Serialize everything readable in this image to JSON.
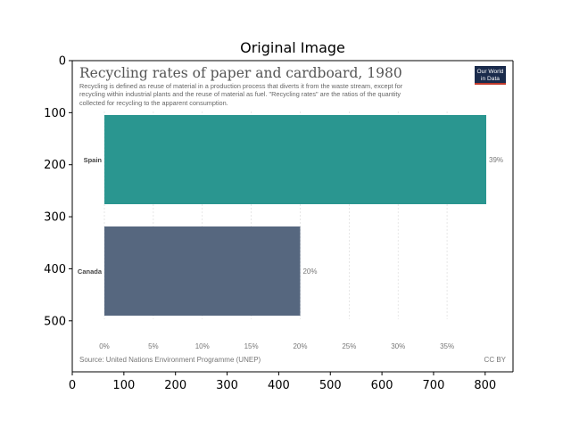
{
  "figure": {
    "title": "Original Image",
    "x_ticks": [
      "0",
      "100",
      "200",
      "300",
      "400",
      "500",
      "600",
      "700",
      "800"
    ],
    "y_ticks": [
      "0",
      "100",
      "200",
      "300",
      "400",
      "500"
    ]
  },
  "owid": {
    "title": "Recycling rates of paper and cardboard, 1980",
    "subtitle_lines": [
      "Recycling is defined as reuse of material in a production process that diverts it from the waste stream, except for",
      "recycling within industrial plants and the reuse of material as fuel. \"Recycling rates\" are the ratios of the quantity",
      "collected for recycling to the apparent consumption."
    ],
    "logo_line1": "Our World",
    "logo_line2": "in Data",
    "source": "Source: United Nations Environment Programme (UNEP)",
    "license": "CC BY",
    "colors": {
      "logo_bg": "#1a2b4c",
      "logo_accent": "#c0392b"
    }
  },
  "chart_data": {
    "type": "bar",
    "orientation": "horizontal",
    "title": "Recycling rates of paper and cardboard, 1980",
    "categories": [
      "Spain",
      "Canada"
    ],
    "values": [
      39,
      20
    ],
    "value_labels": [
      "39%",
      "20%"
    ],
    "colors": [
      "#2a9690",
      "#56677f"
    ],
    "xlim": [
      0,
      39
    ],
    "x_ticks": [
      0,
      5,
      10,
      15,
      20,
      25,
      30,
      35
    ],
    "x_tick_labels": [
      "0%",
      "5%",
      "10%",
      "15%",
      "20%",
      "25%",
      "30%",
      "35%"
    ],
    "grid": true
  }
}
